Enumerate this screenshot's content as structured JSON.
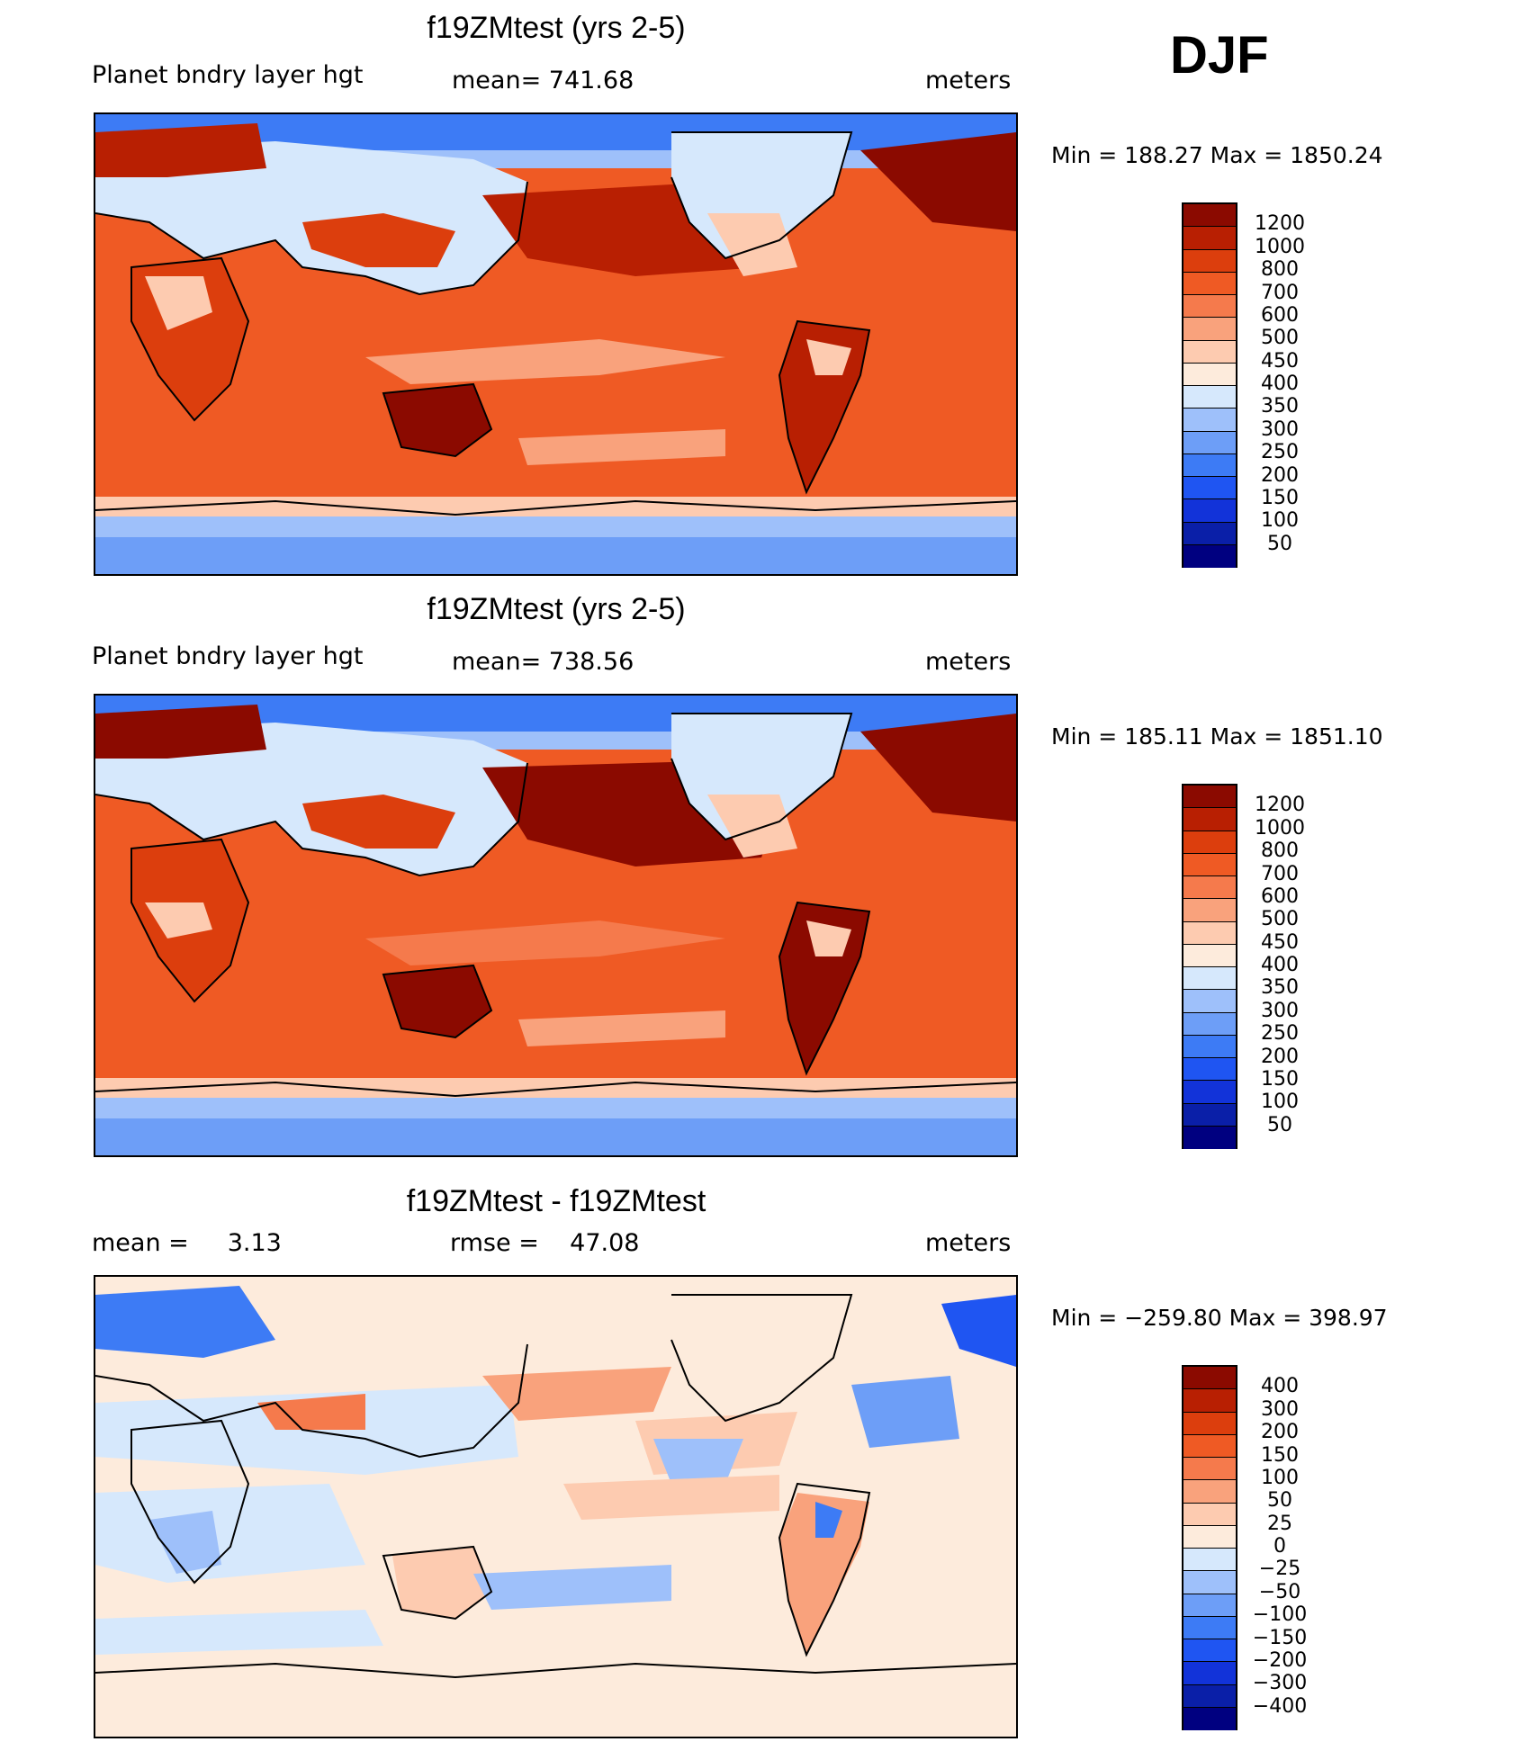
{
  "season": "DJF",
  "colors": {
    "abs_scale": [
      "#000080",
      "#0a1fa8",
      "#1233d9",
      "#1f55f2",
      "#3d7bf5",
      "#6d9ef7",
      "#9ec0fa",
      "#d6e8fc",
      "#fdebdc",
      "#fdcbb0",
      "#f9a27c",
      "#f57a4c",
      "#ef5a24",
      "#dc3e0d",
      "#b81f02",
      "#8b0a00"
    ],
    "diff_scale": [
      "#000080",
      "#0a1fa8",
      "#1233d9",
      "#1f55f2",
      "#3d7bf5",
      "#6d9ef7",
      "#9ec0fa",
      "#d6e8fc",
      "#fdebdc",
      "#fdcbb0",
      "#f9a27c",
      "#f57a4c",
      "#ef5a24",
      "#dc3e0d",
      "#b81f02",
      "#8b0a00"
    ]
  },
  "panels": [
    {
      "title": "f19ZMtest (yrs 2-5)",
      "left_text": "Planet bndry layer hgt",
      "center_text": "mean= 741.68",
      "right_text": "meters",
      "minmax_text": "Min = 188.27 Max = 1850.24"
    },
    {
      "title": "f19ZMtest (yrs 2-5)",
      "left_text": "Planet bndry layer hgt",
      "center_text": "mean= 738.56",
      "right_text": "meters",
      "minmax_text": "Min = 185.11 Max = 1851.10"
    },
    {
      "title": "f19ZMtest - f19ZMtest",
      "left_text": "mean =     3.13",
      "center_text": "rmse =    47.08",
      "right_text": "meters",
      "minmax_text": "Min = −259.80 Max = 398.97"
    }
  ],
  "chart_data": [
    {
      "type": "heatmap",
      "title": "f19ZMtest (yrs 2-5)",
      "variable": "Planet bndry layer hgt",
      "units": "meters",
      "mean": 741.68,
      "min": 188.27,
      "max": 1850.24,
      "contour_levels": [
        50,
        100,
        150,
        200,
        250,
        300,
        350,
        400,
        450,
        500,
        600,
        700,
        800,
        1000,
        1200
      ],
      "colorbar_labels": [
        "1200",
        "1000",
        "800",
        "700",
        "600",
        "500",
        "450",
        "400",
        "350",
        "300",
        "250",
        "200",
        "150",
        "100",
        "50"
      ]
    },
    {
      "type": "heatmap",
      "title": "f19ZMtest (yrs 2-5)",
      "variable": "Planet bndry layer hgt",
      "units": "meters",
      "mean": 738.56,
      "min": 185.11,
      "max": 1851.1,
      "contour_levels": [
        50,
        100,
        150,
        200,
        250,
        300,
        350,
        400,
        450,
        500,
        600,
        700,
        800,
        1000,
        1200
      ],
      "colorbar_labels": [
        "1200",
        "1000",
        "800",
        "700",
        "600",
        "500",
        "450",
        "400",
        "350",
        "300",
        "250",
        "200",
        "150",
        "100",
        "50"
      ]
    },
    {
      "type": "heatmap",
      "title": "f19ZMtest - f19ZMtest",
      "units": "meters",
      "mean": 3.13,
      "rmse": 47.08,
      "min": -259.8,
      "max": 398.97,
      "contour_levels": [
        -400,
        -300,
        -200,
        -150,
        -100,
        -50,
        -25,
        0,
        25,
        50,
        100,
        150,
        200,
        300,
        400
      ],
      "colorbar_labels": [
        "400",
        "300",
        "200",
        "150",
        "100",
        "50",
        "25",
        "0",
        "−25",
        "−50",
        "−100",
        "−150",
        "−200",
        "−300",
        "−400"
      ]
    }
  ]
}
